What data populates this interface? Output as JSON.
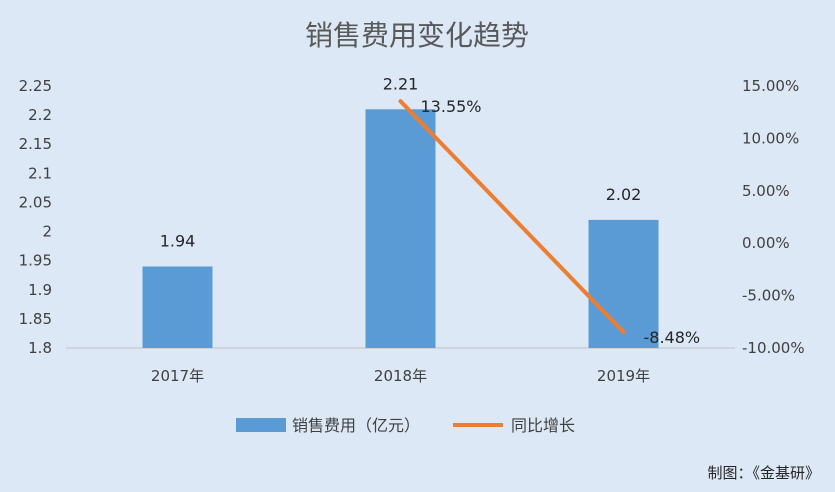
{
  "chart_data": {
    "type": "bar",
    "title": "销售费用变化趋势",
    "categories": [
      "2017年",
      "2018年",
      "2019年"
    ],
    "series": [
      {
        "name": "销售费用（亿元）",
        "type": "bar",
        "axis": "left",
        "color": "#5b9bd5",
        "values": [
          1.94,
          2.21,
          2.02
        ],
        "labels": [
          "1.94",
          "2.21",
          "2.02"
        ]
      },
      {
        "name": "同比增长",
        "type": "line",
        "axis": "right",
        "color": "#ed7d31",
        "values": [
          null,
          13.55,
          -8.48
        ],
        "labels": [
          "",
          "13.55%",
          "-8.48%"
        ]
      }
    ],
    "ylim": [
      1.8,
      2.25
    ],
    "y_ticks": [
      "2.25",
      "2.2",
      "2.15",
      "2.1",
      "2.05",
      "2",
      "1.95",
      "1.9",
      "1.85",
      "1.8"
    ],
    "y2lim": [
      -10,
      15
    ],
    "y2_ticks": [
      "15.00%",
      "10.00%",
      "5.00%",
      "0.00%",
      "-5.00%",
      "-10.00%"
    ],
    "grid": false,
    "legend": "bottom"
  },
  "credit": "制图：《金基研》"
}
